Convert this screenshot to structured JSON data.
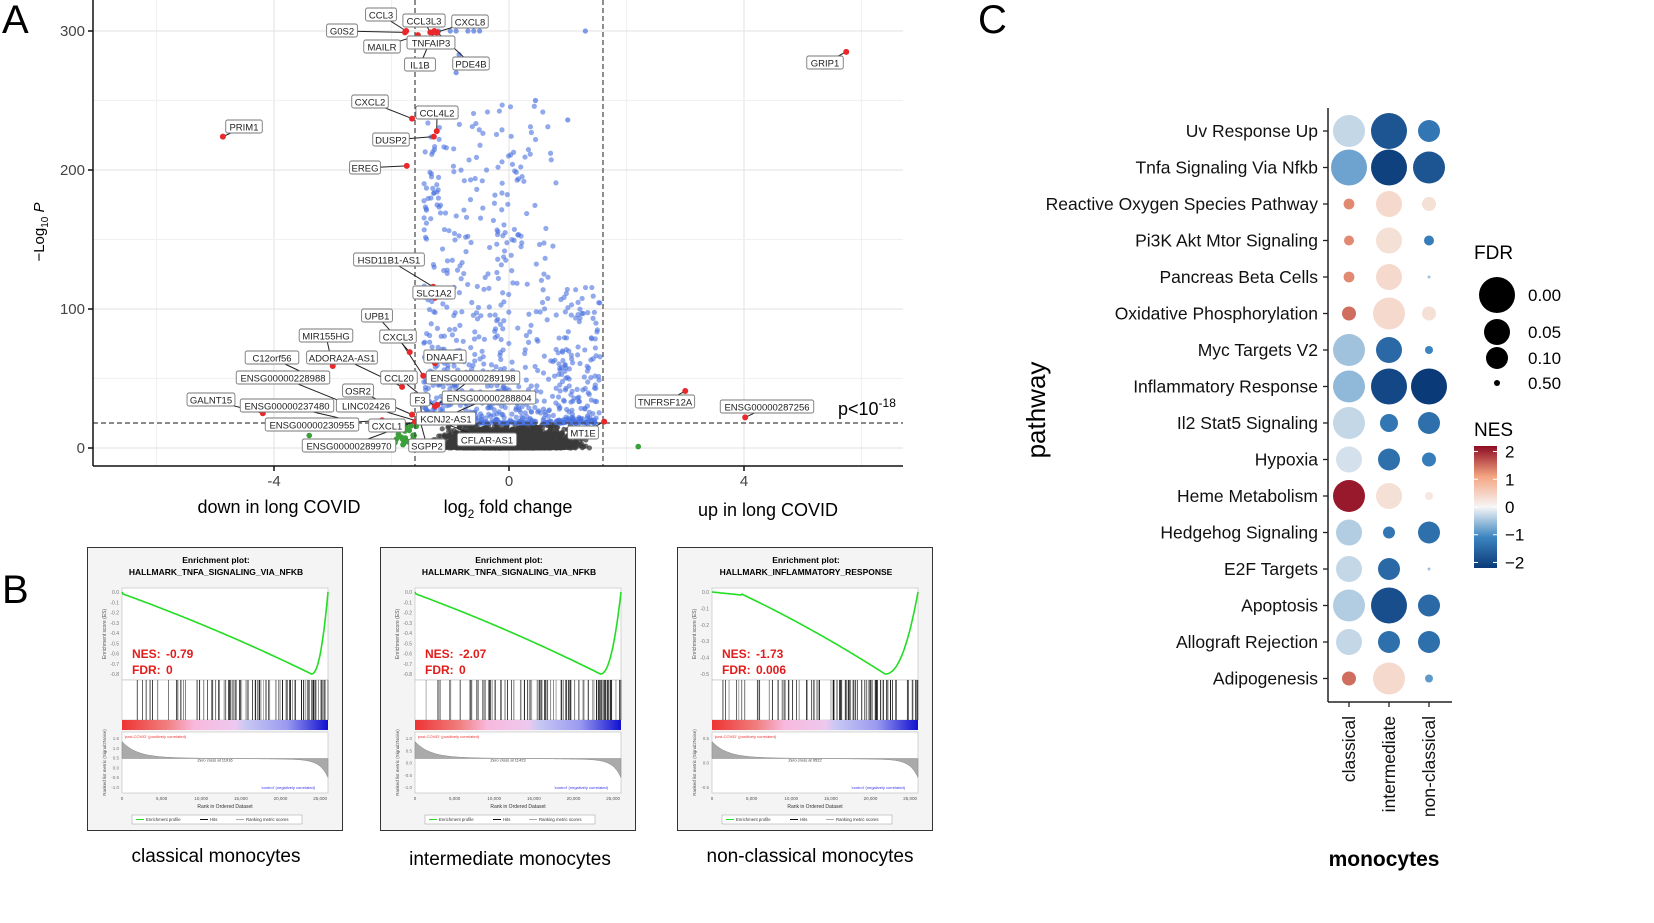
{
  "panel_letters": {
    "a": "A",
    "b": "B",
    "c": "C"
  },
  "chart_data": [
    {
      "panel": "A",
      "type": "scatter",
      "subtype": "volcano",
      "xlabel": "log2 fold change",
      "xlabel_sub": "2",
      "xlabel_prefix": "log",
      "xlabel_suffix": " fold change",
      "ylabel_prefix": "−Log",
      "ylabel_sub": "10",
      "ylabel_suffix": " P",
      "x_side_labels": {
        "left": "down in long COVID",
        "right": "up in long COVID"
      },
      "xlim": [
        -7.1,
        6.7
      ],
      "ylim": [
        -13,
        322
      ],
      "x_ticks": [
        -4,
        0,
        4
      ],
      "x_tick_labels": [
        "-4",
        "0",
        "4"
      ],
      "y_ticks": [
        0,
        100,
        200,
        300
      ],
      "y_tick_labels": [
        "0",
        "100",
        "200",
        "300"
      ],
      "fc_cutoffs": [
        -1.6,
        1.6
      ],
      "p_cutoff_y": 18,
      "p_cutoff_label": {
        "base": "p<10",
        "exp": "-18"
      },
      "colors": {
        "sig_both": "#e8282b",
        "sig_p": "#4a72e0",
        "ns": "#3a3a3a",
        "sig_fc": "#3aa03a"
      },
      "labeled_genes": [
        {
          "gene": "CCL3",
          "x": -1.75,
          "y": 300
        },
        {
          "gene": "G0S2",
          "x": -1.77,
          "y": 299
        },
        {
          "gene": "CCL3L3",
          "x": -1.34,
          "y": 299
        },
        {
          "gene": "CXCL8",
          "x": -1.24,
          "y": 299
        },
        {
          "gene": "MAILR",
          "x": -1.55,
          "y": 297
        },
        {
          "gene": "TNFAIP3",
          "x": -1.3,
          "y": 299
        },
        {
          "gene": "IL1B",
          "x": -1.27,
          "y": 300
        },
        {
          "gene": "PDE4B",
          "x": -1.22,
          "y": 299
        },
        {
          "gene": "GRIP1",
          "x": 5.74,
          "y": 285
        },
        {
          "gene": "CXCL2",
          "x": -1.65,
          "y": 237
        },
        {
          "gene": "CCL4L2",
          "x": -1.23,
          "y": 228
        },
        {
          "gene": "PRIM1",
          "x": -4.87,
          "y": 224
        },
        {
          "gene": "DUSP2",
          "x": -1.28,
          "y": 224
        },
        {
          "gene": "EREG",
          "x": -1.74,
          "y": 203
        },
        {
          "gene": "HSD11B1-AS1",
          "x": -1.29,
          "y": 116
        },
        {
          "gene": "SLC1A2",
          "x": -1.26,
          "y": 108
        },
        {
          "gene": "UPB1",
          "x": -1.69,
          "y": 69
        },
        {
          "gene": "MIR155HG",
          "x": -3.0,
          "y": 59
        },
        {
          "gene": "CXCL3",
          "x": -1.46,
          "y": 52
        },
        {
          "gene": "DNAAF1",
          "x": -1.26,
          "y": 61
        },
        {
          "gene": "C12orf56",
          "x": -3.29,
          "y": 50
        },
        {
          "gene": "ADORA2A-AS1",
          "x": -1.82,
          "y": 44
        },
        {
          "gene": "ENSG00000228988",
          "x": -2.71,
          "y": 31
        },
        {
          "gene": "CCL20",
          "x": -1.26,
          "y": 30
        },
        {
          "gene": "ENSG00000289198",
          "x": -1.22,
          "y": 31
        },
        {
          "gene": "OSR2",
          "x": -1.65,
          "y": 24
        },
        {
          "gene": "GALNT15",
          "x": -4.19,
          "y": 25
        },
        {
          "gene": "ENSG00000237480",
          "x": -2.62,
          "y": 19
        },
        {
          "gene": "LINC02426",
          "x": -1.53,
          "y": 19
        },
        {
          "gene": "F3",
          "x": -1.48,
          "y": 21
        },
        {
          "gene": "ENSG00000288804",
          "x": -1.21,
          "y": 20
        },
        {
          "gene": "KCNJ2-AS1",
          "x": -1.24,
          "y": 19
        },
        {
          "gene": "ENSG00000230955",
          "x": -2.16,
          "y": 20
        },
        {
          "gene": "CXCL1",
          "x": -1.51,
          "y": 19
        },
        {
          "gene": "ENSG00000289970",
          "x": -1.6,
          "y": 19
        },
        {
          "gene": "SGPP2",
          "x": -1.51,
          "y": 19
        },
        {
          "gene": "CFLAR-AS1",
          "x": -1.17,
          "y": 19
        },
        {
          "gene": "MT1E",
          "x": 1.62,
          "y": 19
        },
        {
          "gene": "TNFRSF12A",
          "x": 3.0,
          "y": 41
        },
        {
          "gene": "ENSG00000287256",
          "x": 4.02,
          "y": 22
        }
      ]
    },
    {
      "panel": "B",
      "type": "line",
      "subtype": "gsea-enrichment",
      "common": {
        "title_line1": "Enrichment plot:",
        "es_axis_label": "Enrichment score (ES)",
        "metric_axis_label": "Ranked list metric (Signal2Noise)",
        "pos_label": "'post-COVID' (positively correlated)",
        "neg_label": "'control' (negatively correlated)",
        "x_axis_label": "Rank in Ordered Dataset",
        "x_tick_labels": [
          "0",
          "5,000",
          "10,000",
          "15,000",
          "20,000",
          "25,000"
        ],
        "legend": [
          "Enrichment profile",
          "Hits",
          "Ranking metric scores"
        ],
        "nes_prefix": "NES:",
        "fdr_prefix": "FDR:"
      },
      "plots": [
        {
          "gene_set": "HALLMARK_TNFA_SIGNALING_VIA_NFKB",
          "nes": "-0.79",
          "fdr": "0",
          "es_min": -0.8,
          "min_rank_fraction": 0.92,
          "flat_start": 0.0,
          "zero_cross": "Zero cross at 11916",
          "es_ticks": [
            "0.0",
            "-0.1",
            "-0.2",
            "-0.3",
            "-0.4",
            "-0.5",
            "-0.6",
            "-0.7",
            "-0.8"
          ],
          "metric_ticks": [
            "1.5",
            "1.0",
            "0.5",
            "0.0",
            "-0.5",
            "-1.0"
          ],
          "caption": "classical monocytes"
        },
        {
          "gene_set": "HALLMARK_TNFA_SIGNALING_VIA_NFKB",
          "nes": "-2.07",
          "fdr": "0",
          "es_min": -0.82,
          "min_rank_fraction": 0.9,
          "flat_start": 0.0,
          "zero_cross": "Zero cross at 11423",
          "es_ticks": [
            "0.0",
            "-0.1",
            "-0.2",
            "-0.3",
            "-0.4",
            "-0.5",
            "-0.6",
            "-0.7",
            "-0.8"
          ],
          "metric_ticks": [
            "1.0",
            "0.5",
            "0.0",
            "-0.5",
            "-1.0"
          ],
          "caption": "intermediate monocytes"
        },
        {
          "gene_set": "HALLMARK_INFLAMMATORY_RESPONSE",
          "nes": "-1.73",
          "fdr": "0.006",
          "es_min": -0.55,
          "min_rank_fraction": 0.84,
          "flat_start": 0.14,
          "zero_cross": "Zero cross at 9522",
          "es_ticks": [
            "0.0",
            "-0.1",
            "-0.2",
            "-0.3",
            "-0.4",
            "-0.5"
          ],
          "metric_ticks": [
            "0.5",
            "0.0",
            "-0.5"
          ],
          "caption": "non-classical monocytes"
        }
      ]
    },
    {
      "panel": "C",
      "type": "scatter",
      "subtype": "dot-plot",
      "ylabel": "pathway",
      "xlabel": "monocytes",
      "columns": [
        "classical",
        "intermediate",
        "non-classical"
      ],
      "rows": [
        "Uv Response Up",
        "Tnfa Signaling Via Nfkb",
        "Reactive Oxygen Species Pathway",
        "Pi3K Akt Mtor Signaling",
        "Pancreas Beta Cells",
        "Oxidative Phosphorylation",
        "Myc Targets V2",
        "Inflammatory Response",
        "Il2 Stat5 Signaling",
        "Hypoxia",
        "Heme Metabolism",
        "Hedgehog Signaling",
        "E2F Targets",
        "Apoptosis",
        "Allograft Rejection",
        "Adipogenesis"
      ],
      "nes": [
        [
          -0.3,
          -1.8,
          -1.3
        ],
        [
          -0.8,
          -2.1,
          -1.8
        ],
        [
          1.3,
          0.4,
          0.3
        ],
        [
          1.3,
          0.3,
          -1.2
        ],
        [
          1.3,
          0.4,
          -0.5
        ],
        [
          1.5,
          0.4,
          0.3
        ],
        [
          -0.5,
          -1.5,
          -1.1
        ],
        [
          -0.6,
          -2.0,
          -2.2
        ],
        [
          -0.3,
          -1.3,
          -1.4
        ],
        [
          -0.2,
          -1.4,
          -1.2
        ],
        [
          2.1,
          0.3,
          0.2
        ],
        [
          -0.4,
          -1.3,
          -1.4
        ],
        [
          -0.3,
          -1.5,
          -0.5
        ],
        [
          -0.4,
          -1.9,
          -1.5
        ],
        [
          -0.3,
          -1.4,
          -1.4
        ],
        [
          1.5,
          0.4,
          -0.9
        ]
      ],
      "fdr": [
        [
          0.02,
          0.0,
          0.1
        ],
        [
          0.0,
          0.0,
          0.02
        ],
        [
          0.38,
          0.05,
          0.3
        ],
        [
          0.4,
          0.05,
          0.4
        ],
        [
          0.38,
          0.05,
          0.55
        ],
        [
          0.3,
          0.02,
          0.3
        ],
        [
          0.02,
          0.05,
          0.45
        ],
        [
          0.02,
          0.0,
          0.0
        ],
        [
          0.02,
          0.2,
          0.1
        ],
        [
          0.05,
          0.1,
          0.3
        ],
        [
          0.02,
          0.05,
          0.45
        ],
        [
          0.05,
          0.35,
          0.1
        ],
        [
          0.05,
          0.1,
          0.55
        ],
        [
          0.02,
          0.0,
          0.1
        ],
        [
          0.05,
          0.1,
          0.1
        ],
        [
          0.3,
          0.02,
          0.45
        ]
      ],
      "legend_fdr": {
        "title": "FDR",
        "values": [
          0.0,
          0.05,
          0.1,
          0.5
        ],
        "labels": [
          "0.00",
          "0.05",
          "0.10",
          "0.50"
        ]
      },
      "legend_nes": {
        "title": "NES",
        "range": [
          -2.2,
          2.2
        ],
        "ticks": [
          2,
          1,
          0,
          -1,
          -2
        ],
        "tick_labels": [
          "2",
          "1",
          "0",
          "−1",
          "−2"
        ]
      },
      "color_scale": [
        "#0b3a78",
        "#3b84c0",
        "#f6f6f6",
        "#f4a582",
        "#8e0b22"
      ]
    }
  ]
}
